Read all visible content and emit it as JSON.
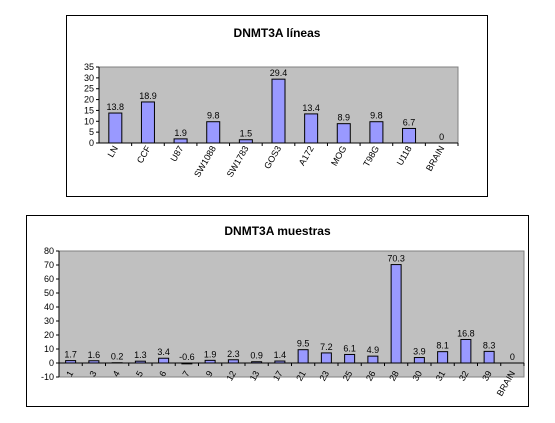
{
  "colors": {
    "plot_bg": "#c0c0c0",
    "bar_fill": "#9999ff",
    "bar_stroke": "#000000"
  },
  "chart_data": [
    {
      "type": "bar",
      "title": "DNMT3A líneas",
      "categories": [
        "LN",
        "CCF",
        "U87",
        "SW1088",
        "SW1783",
        "GOS3",
        "A172",
        "MOG",
        "T98G",
        "U118",
        "BRAIN"
      ],
      "values": [
        13.8,
        18.9,
        1.9,
        9.8,
        1.5,
        29.4,
        13.4,
        8.9,
        9.8,
        6.7,
        0
      ],
      "value_labels": [
        "13.8",
        "18.9",
        "1.9",
        "9.8",
        "1.5",
        "29.4",
        "13.4",
        "8.9",
        "9.8",
        "6.7",
        "0"
      ],
      "ylim": [
        0,
        35
      ],
      "yticks": [
        "0",
        "5",
        "10",
        "15",
        "20",
        "25",
        "30",
        "35"
      ],
      "ytick_values": [
        0,
        5,
        10,
        15,
        20,
        25,
        30,
        35
      ],
      "grid": false
    },
    {
      "type": "bar",
      "title": "DNMT3A muestras",
      "categories": [
        "1",
        "3",
        "4",
        "5",
        "6",
        "7",
        "9",
        "12",
        "13",
        "17",
        "21",
        "23",
        "25",
        "26",
        "28",
        "30",
        "31",
        "32",
        "39",
        "BRAIN"
      ],
      "values": [
        1.7,
        1.6,
        0.2,
        1.3,
        3.4,
        -0.6,
        1.9,
        2.3,
        0.9,
        1.4,
        9.5,
        7.2,
        6.1,
        4.9,
        70.3,
        3.9,
        8.1,
        16.8,
        8.3,
        0
      ],
      "value_labels": [
        "1.7",
        "1.6",
        "0.2",
        "1.3",
        "3.4",
        "-0.6",
        "1.9",
        "2.3",
        "0.9",
        "1.4",
        "9.5",
        "7.2",
        "6.1",
        "4.9",
        "70.3",
        "3.9",
        "8.1",
        "16.8",
        "8.3",
        "0"
      ],
      "ylim": [
        -10,
        80
      ],
      "yticks": [
        "-10",
        "0",
        "10",
        "20",
        "30",
        "40",
        "50",
        "60",
        "70",
        "80"
      ],
      "ytick_values": [
        -10,
        0,
        10,
        20,
        30,
        40,
        50,
        60,
        70,
        80
      ],
      "grid": false
    }
  ]
}
